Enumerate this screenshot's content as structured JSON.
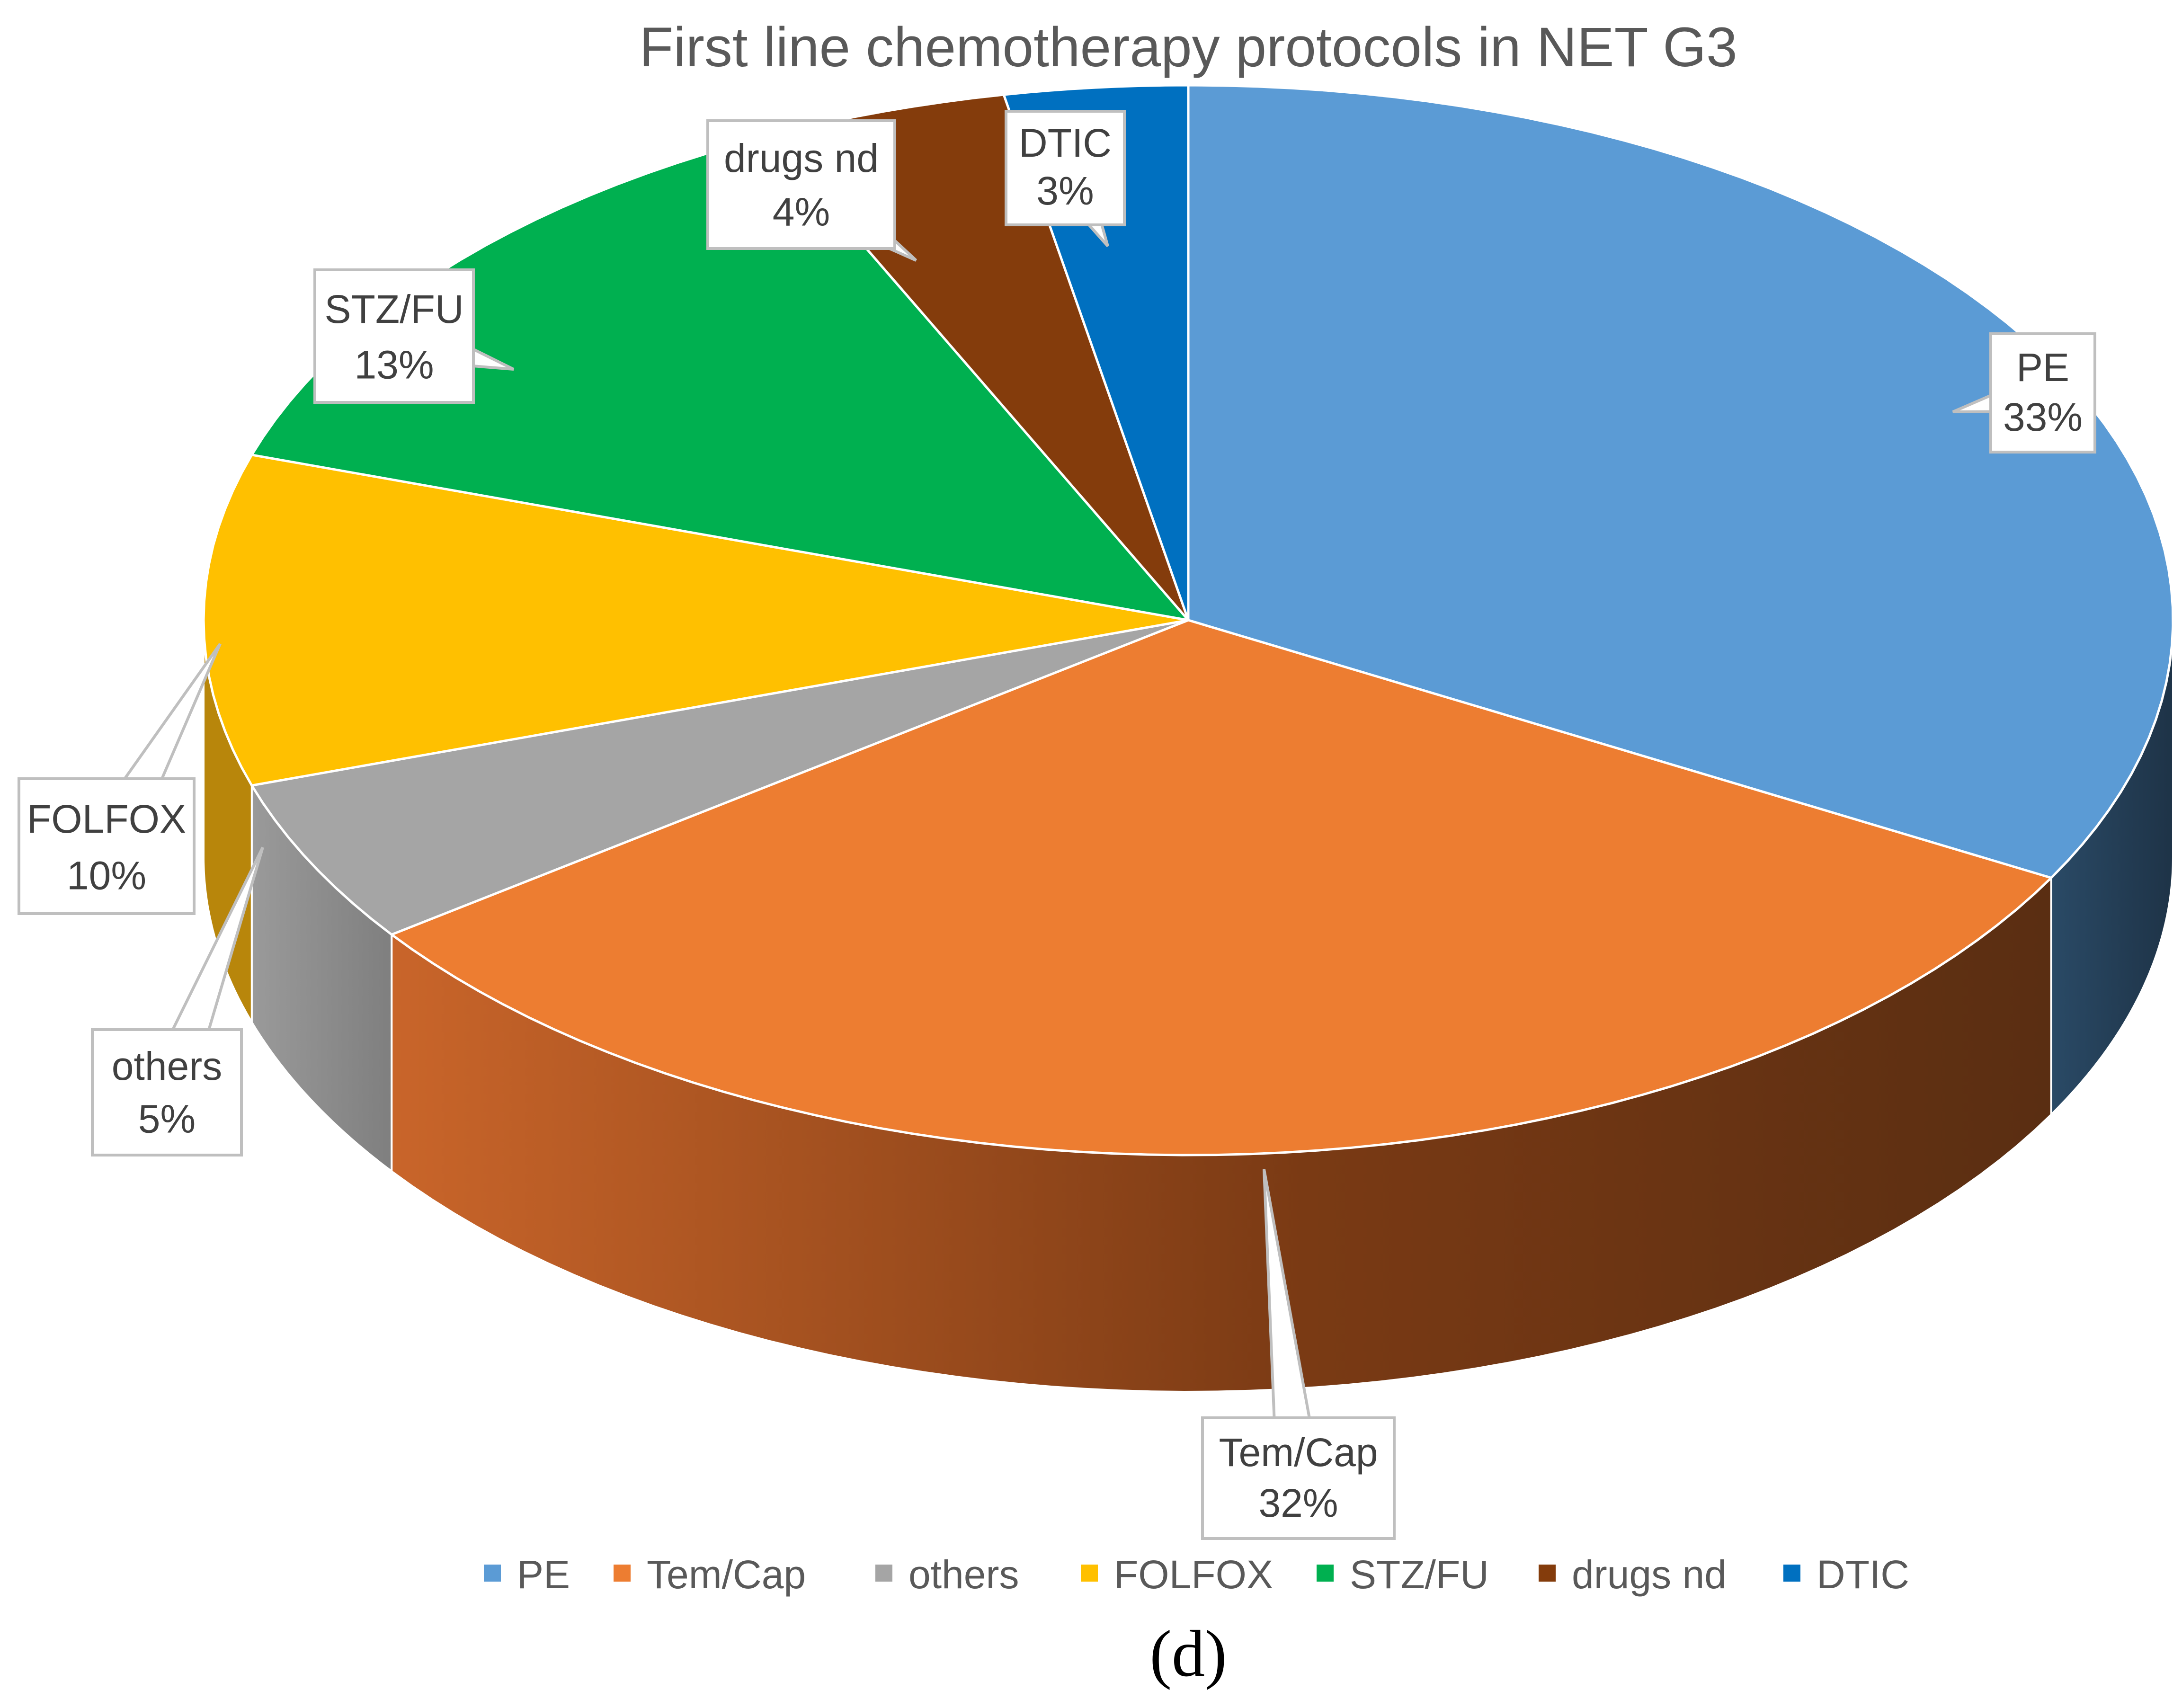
{
  "chart_data": {
    "type": "pie",
    "title": "First line chemotherapy protocols in NET G3",
    "caption": "(d)",
    "legend_position": "bottom",
    "slices": [
      {
        "name": "PE",
        "value": 33,
        "label": "33%",
        "color": "#5B9BD5",
        "side_color": "#243F55"
      },
      {
        "name": "Tem/Cap",
        "value": 32,
        "label": "32%",
        "color": "#ED7D31",
        "side_color": "#8A4519"
      },
      {
        "name": "others",
        "value": 5,
        "label": "5%",
        "color": "#A5A5A5",
        "side_color": "#7A7A7A"
      },
      {
        "name": "FOLFOX",
        "value": 10,
        "label": "10%",
        "color": "#FFC000",
        "side_color": "#B8860B"
      },
      {
        "name": "STZ/FU",
        "value": 13,
        "label": "13%",
        "color": "#00B050",
        "side_color": "#007A38"
      },
      {
        "name": "drugs nd",
        "value": 4,
        "label": "4%",
        "color": "#843C0C",
        "side_color": "#5A2908"
      },
      {
        "name": "DTIC",
        "value": 3,
        "label": "3%",
        "color": "#0070C0",
        "side_color": "#004A80"
      }
    ]
  }
}
